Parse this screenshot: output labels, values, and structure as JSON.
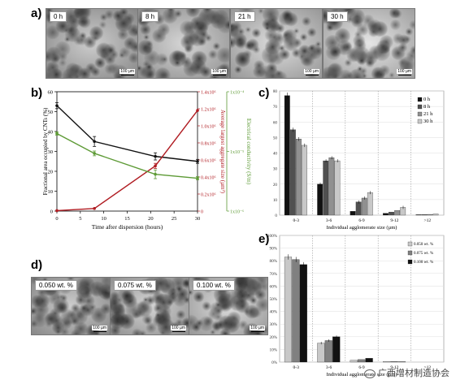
{
  "panel_a": {
    "label": "a)",
    "images": [
      {
        "label": "0 h",
        "scale": "100 µm"
      },
      {
        "label": "8 h",
        "scale": "100 µm"
      },
      {
        "label": "21 h",
        "scale": "100 µm"
      },
      {
        "label": "30 h",
        "scale": "100 µm"
      }
    ]
  },
  "panel_d": {
    "label": "d)",
    "images": [
      {
        "label": "0.050 wt. %",
        "scale": "100 µm"
      },
      {
        "label": "0.075 wt. %",
        "scale": "100 µm"
      },
      {
        "label": "0.100 wt. %",
        "scale": "100 µm"
      }
    ]
  },
  "watermark": "广西增材制造协会",
  "colors": {
    "black_series": "#111111",
    "red_series": "#b01c22",
    "green_series": "#5d9a35"
  },
  "chart_data": [
    {
      "id": "b",
      "panel_label": "b)",
      "type": "line",
      "xlabel": "Time after dispersion (hours)",
      "x_ticks": [
        0,
        5,
        10,
        15,
        20,
        25,
        30
      ],
      "xlim": [
        0,
        30
      ],
      "ylabel_left": "Fractional area occupied by CNTs (%)",
      "ylim_left": [
        0,
        60
      ],
      "yticks_left": [
        0,
        10,
        20,
        30,
        40,
        50,
        60
      ],
      "ylabel_right1": "Average largest aggregate size (µm²)",
      "ylim_right1": [
        0,
        1400000
      ],
      "yticks_right1": [
        "0",
        "0.2x10⁶",
        "0.4x10⁶",
        "0.6x10⁶",
        "0.8x10⁶",
        "1.0x10⁶",
        "1.2x10⁶",
        "1.4x10⁶"
      ],
      "ylabel_right2": "Electrical conductivity (S/m)",
      "yticks_right2": [
        "1x10⁻⁶",
        "1x10⁻⁵",
        "1x10⁻⁴"
      ],
      "series": [
        {
          "axis": "left",
          "color": "#111111",
          "x": [
            0,
            8,
            21,
            30
          ],
          "y": [
            53,
            35,
            27.5,
            25
          ],
          "err": [
            1.5,
            2.5,
            1.8,
            1.0
          ]
        },
        {
          "axis": "right1",
          "color": "#b01c22",
          "x": [
            0,
            8,
            21,
            30
          ],
          "y": [
            5000,
            30000,
            530000,
            1180000
          ],
          "err": [
            0,
            0,
            30000,
            0
          ]
        },
        {
          "axis": "right2_as_left",
          "color": "#5d9a35",
          "x": [
            0,
            8,
            21,
            30
          ],
          "y": [
            39,
            29,
            18.5,
            16.5
          ],
          "err": [
            0.8,
            1.2,
            2.2,
            0.8
          ]
        }
      ]
    },
    {
      "id": "c",
      "panel_label": "c)",
      "type": "bar",
      "xlabel": "Individual agglomerate size (µm)",
      "categories": [
        "0-3",
        "3-6",
        "6-9",
        "9-12",
        ">12"
      ],
      "ylim": [
        0,
        80
      ],
      "yticks": [
        "0",
        "10",
        "20",
        "30",
        "40",
        "50",
        "60",
        "70",
        "80"
      ],
      "legend_position": "top-right",
      "series": [
        {
          "name": "0 h",
          "color": "#111111",
          "values": [
            77,
            20,
            2.5,
            1.2,
            0.3
          ]
        },
        {
          "name": "8 h",
          "color": "#505050",
          "values": [
            55,
            35,
            8.5,
            2,
            0.4
          ]
        },
        {
          "name": "21 h",
          "color": "#909090",
          "values": [
            49,
            37,
            11,
            3,
            0.5
          ]
        },
        {
          "name": "30 h",
          "color": "#c8c8c8",
          "values": [
            45,
            35,
            14.5,
            5,
            0.8
          ]
        }
      ]
    },
    {
      "id": "e",
      "panel_label": "e)",
      "type": "bar",
      "xlabel": "Individual agglomerate size (µm)",
      "categories": [
        "0-3",
        "3-6",
        "6-9",
        "9-12",
        ">12"
      ],
      "ylim": [
        0,
        100
      ],
      "yticks": [
        "0%",
        "10%",
        "20%",
        "30%",
        "40%",
        "50%",
        "60%",
        "70%",
        "80%",
        "90%",
        "100%"
      ],
      "legend_position": "top-right",
      "series": [
        {
          "name": "0.050 wt. %",
          "color": "#c8c8c8",
          "values": [
            83,
            15,
            1.5,
            0.4,
            0
          ]
        },
        {
          "name": "0.075 wt. %",
          "color": "#808080",
          "values": [
            81,
            17,
            2,
            0.5,
            0
          ]
        },
        {
          "name": "0.100 wt. %",
          "color": "#111111",
          "values": [
            77,
            20,
            3,
            0.3,
            0
          ]
        }
      ]
    }
  ]
}
